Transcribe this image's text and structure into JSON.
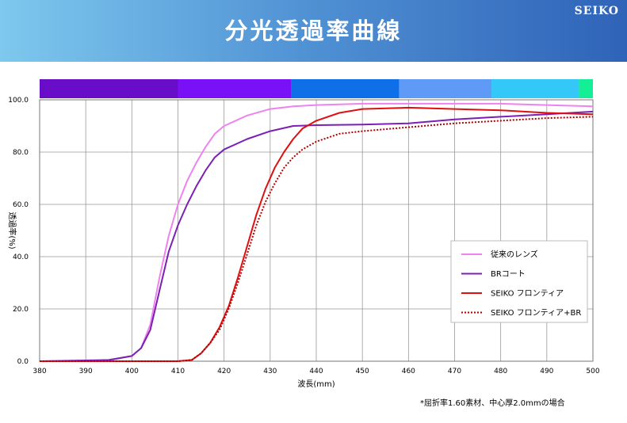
{
  "header": {
    "title": "分光透過率曲線",
    "brand": "SEIKO"
  },
  "note": "*屈折率1.60素材、中心厚2.0mmの場合",
  "chart_data": {
    "type": "line",
    "title": "",
    "xlabel": "波長(mm)",
    "ylabel": "透過率(%)",
    "xlim": [
      380,
      500
    ],
    "ylim": [
      0,
      100
    ],
    "x_ticks": [
      "380",
      "390",
      "400",
      "410",
      "420",
      "430",
      "440",
      "450",
      "460",
      "470",
      "480",
      "490",
      "500"
    ],
    "y_ticks": [
      "0.0",
      "20.0",
      "40.0",
      "60.0",
      "80.0",
      "100.0"
    ],
    "grid": true,
    "legend_position": "right",
    "color_band": [
      {
        "from": 380,
        "to": 410,
        "color": "#6a0dc8"
      },
      {
        "from": 410,
        "to": 434.5,
        "color": "#7a10f5"
      },
      {
        "from": 434.5,
        "to": 458,
        "color": "#0f6fe8"
      },
      {
        "from": 458,
        "to": 478,
        "color": "#5f9af6"
      },
      {
        "from": 478,
        "to": 497,
        "color": "#33c8f7"
      },
      {
        "from": 497,
        "to": 500,
        "color": "#13ef94"
      }
    ],
    "series": [
      {
        "name": "従来のレンズ",
        "color": "#ee82ee",
        "style": "solid",
        "points": [
          [
            380,
            0
          ],
          [
            395,
            0.3
          ],
          [
            400,
            2
          ],
          [
            402,
            5
          ],
          [
            404,
            14
          ],
          [
            406,
            32
          ],
          [
            408,
            48
          ],
          [
            410,
            60
          ],
          [
            412,
            69
          ],
          [
            414,
            76
          ],
          [
            416,
            82
          ],
          [
            418,
            87
          ],
          [
            420,
            90
          ],
          [
            425,
            94
          ],
          [
            430,
            96.5
          ],
          [
            435,
            97.5
          ],
          [
            440,
            98
          ],
          [
            450,
            98.5
          ],
          [
            460,
            98.5
          ],
          [
            470,
            98.5
          ],
          [
            480,
            98.5
          ],
          [
            490,
            98
          ],
          [
            500,
            97.5
          ]
        ]
      },
      {
        "name": "BRコート",
        "color": "#7b1fb5",
        "style": "solid",
        "points": [
          [
            380,
            0
          ],
          [
            395,
            0.5
          ],
          [
            400,
            2
          ],
          [
            402,
            5
          ],
          [
            404,
            12
          ],
          [
            406,
            27
          ],
          [
            408,
            42
          ],
          [
            410,
            52
          ],
          [
            412,
            60
          ],
          [
            414,
            67
          ],
          [
            416,
            73
          ],
          [
            418,
            78
          ],
          [
            420,
            81
          ],
          [
            425,
            85
          ],
          [
            430,
            88
          ],
          [
            435,
            90
          ],
          [
            440,
            90.3
          ],
          [
            450,
            90.5
          ],
          [
            460,
            91
          ],
          [
            470,
            92.5
          ],
          [
            480,
            93.5
          ],
          [
            490,
            94.5
          ],
          [
            500,
            95.5
          ]
        ]
      },
      {
        "name": "SEIKO フロンティア",
        "color": "#dd1111",
        "style": "solid",
        "points": [
          [
            380,
            0
          ],
          [
            410,
            0
          ],
          [
            413,
            0.5
          ],
          [
            415,
            3
          ],
          [
            417,
            7
          ],
          [
            419,
            13
          ],
          [
            421,
            21
          ],
          [
            423,
            32
          ],
          [
            425,
            44
          ],
          [
            427,
            56
          ],
          [
            429,
            66
          ],
          [
            431,
            74
          ],
          [
            433,
            80
          ],
          [
            435,
            85
          ],
          [
            437,
            89
          ],
          [
            440,
            92
          ],
          [
            445,
            95
          ],
          [
            450,
            96.5
          ],
          [
            460,
            97
          ],
          [
            470,
            96.5
          ],
          [
            480,
            96
          ],
          [
            490,
            95
          ],
          [
            500,
            94.5
          ]
        ]
      },
      {
        "name": "SEIKO フロンティア+BR",
        "color": "#b00000",
        "style": "dotted",
        "points": [
          [
            380,
            0
          ],
          [
            410,
            0
          ],
          [
            413,
            0.5
          ],
          [
            415,
            3
          ],
          [
            417,
            7
          ],
          [
            419,
            12
          ],
          [
            421,
            20
          ],
          [
            423,
            30
          ],
          [
            425,
            41
          ],
          [
            427,
            52
          ],
          [
            429,
            61
          ],
          [
            431,
            68
          ],
          [
            433,
            74
          ],
          [
            435,
            78
          ],
          [
            437,
            81
          ],
          [
            440,
            84
          ],
          [
            445,
            87
          ],
          [
            450,
            88
          ],
          [
            460,
            89.5
          ],
          [
            470,
            91
          ],
          [
            480,
            92
          ],
          [
            490,
            93
          ],
          [
            500,
            93.5
          ]
        ]
      }
    ]
  }
}
